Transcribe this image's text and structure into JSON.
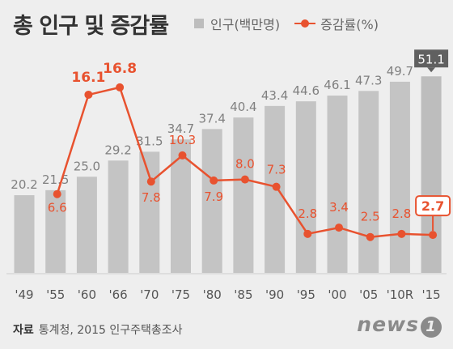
{
  "title": "총 인구 및 증감률",
  "legend": {
    "bars": "인구(백만명)",
    "line": "증감률(%)"
  },
  "source": {
    "label": "자료",
    "text": "통계청, 2015 인구주택총조사"
  },
  "logo": {
    "text": "news",
    "mark": "1"
  },
  "colors": {
    "bar": "#c4c4c4",
    "bar_last": "#bdbdbd",
    "line": "#e8522f",
    "highlight_bar_label": "#606060",
    "background": "#eeeeee"
  },
  "chart_data": {
    "type": "bar",
    "categories": [
      "'49",
      "'55",
      "'60",
      "'66",
      "'70",
      "'75",
      "'80",
      "'85",
      "'90",
      "'95",
      "'00",
      "'05",
      "'10R",
      "'15"
    ],
    "series": [
      {
        "name": "인구(백만명)",
        "type": "bar",
        "values": [
          20.2,
          21.5,
          25.0,
          29.2,
          31.5,
          34.7,
          37.4,
          40.4,
          43.4,
          44.6,
          46.1,
          47.3,
          49.7,
          51.1
        ],
        "labels": [
          "20.2",
          "21.5",
          "25.0",
          "29.2",
          "31.5",
          "34.7",
          "37.4",
          "40.4",
          "43.4",
          "44.6",
          "46.1",
          "47.3",
          "49.7",
          "51.1"
        ]
      },
      {
        "name": "증감률(%)",
        "type": "line",
        "values": [
          null,
          6.6,
          16.1,
          16.8,
          7.8,
          10.3,
          7.9,
          8.0,
          7.3,
          2.8,
          3.4,
          2.5,
          2.8,
          2.7
        ],
        "labels": [
          "",
          "6.6",
          "16.1",
          "16.8",
          "7.8",
          "10.3",
          "7.9",
          "8.0",
          "7.3",
          "2.8",
          "3.4",
          "2.5",
          "2.8",
          "2.7"
        ]
      }
    ],
    "highlight": {
      "category": "'15",
      "bar_value": "51.1",
      "line_value": "2.7"
    },
    "grid": false
  }
}
